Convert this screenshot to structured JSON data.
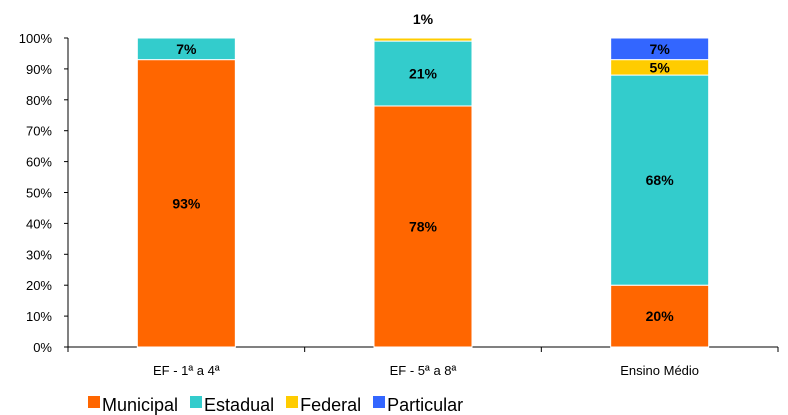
{
  "chart_data": {
    "type": "bar",
    "stacked": true,
    "categories": [
      "EF - 1ª a 4ª",
      "EF - 5ª a 8ª",
      "Ensino Médio"
    ],
    "series": [
      {
        "name": "Municipal",
        "color": "#FF6600",
        "values": [
          93,
          78,
          20
        ],
        "labels": [
          "93%",
          "78%",
          "20%"
        ]
      },
      {
        "name": "Estadual",
        "color": "#33CCCC",
        "values": [
          7,
          21,
          68
        ],
        "labels": [
          "7%",
          "21%",
          "68%"
        ]
      },
      {
        "name": "Federal",
        "color": "#FFCC00",
        "values": [
          0,
          1,
          5
        ],
        "labels": [
          "",
          "1%",
          "5%"
        ]
      },
      {
        "name": "Particular",
        "color": "#3366FF",
        "values": [
          0,
          0,
          7
        ],
        "labels": [
          "",
          "",
          "7%"
        ]
      }
    ],
    "yticks": [
      "0%",
      "10%",
      "20%",
      "30%",
      "40%",
      "50%",
      "60%",
      "70%",
      "80%",
      "90%",
      "100%"
    ],
    "ylim": [
      0,
      100
    ],
    "grid": false,
    "legend_position": "bottom"
  }
}
